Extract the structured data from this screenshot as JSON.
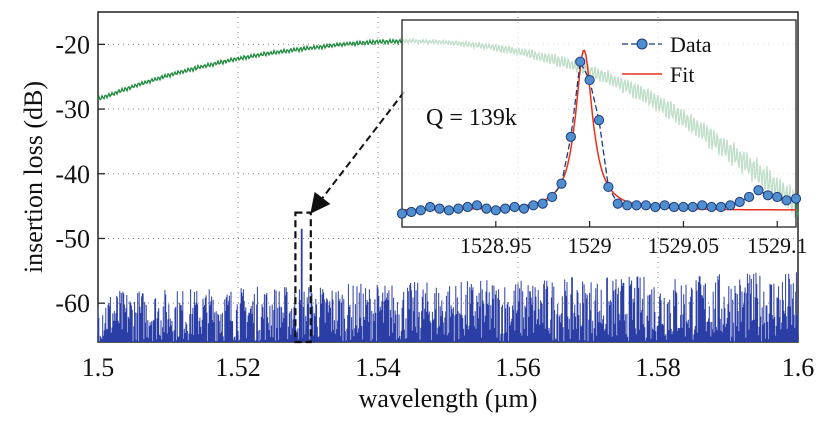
{
  "chart_data": [
    {
      "type": "line",
      "title": "",
      "xlabel": "wavelength (µm)",
      "ylabel": "insertion loss (dB)",
      "xlim": [
        1.5,
        1.6
      ],
      "ylim": [
        -66,
        -15
      ],
      "xticks": [
        1.5,
        1.52,
        1.54,
        1.56,
        1.58,
        1.6
      ],
      "xtick_labels": [
        "1.5",
        "1.52",
        "1.54",
        "1.56",
        "1.58",
        "1.6"
      ],
      "yticks": [
        -60,
        -50,
        -40,
        -30,
        -20
      ],
      "ytick_labels": [
        "-60",
        "-50",
        "-40",
        "-30",
        "-20"
      ],
      "grid": true,
      "series": [
        {
          "color": "#1a8a3a",
          "x": [
            1.5,
            1.505,
            1.51,
            1.515,
            1.52,
            1.525,
            1.53,
            1.535,
            1.54,
            1.545,
            1.55,
            1.555,
            1.56,
            1.565,
            1.57,
            1.575,
            1.58,
            1.585,
            1.59,
            1.595,
            1.6
          ],
          "y": [
            -28.5,
            -26.5,
            -24.8,
            -23.4,
            -22.2,
            -21.3,
            -20.6,
            -20.0,
            -19.6,
            -19.5,
            -19.7,
            -20.2,
            -21.1,
            -22.3,
            -24.0,
            -26.2,
            -29.0,
            -32.4,
            -36.3,
            -40.5,
            -45.0
          ]
        },
        {
          "color": "#2b3ea6",
          "x": [
            1.5,
            1.6
          ],
          "y": [
            -66.0,
            -66.0
          ],
          "noise_upper_envelope": [
            -58,
            -55
          ],
          "peak": {
            "x": 1.5291,
            "y": -48.5
          }
        }
      ],
      "zoom_box": {
        "x": [
          1.5282,
          1.5304
        ],
        "y": [
          -66,
          -46
        ]
      }
    },
    {
      "type": "scatter",
      "title": "",
      "xticks": [
        1528.95,
        1529,
        1529.05,
        1529.1
      ],
      "xtick_labels": [
        "1528.95",
        "1529",
        "1529.05",
        "1529.1"
      ],
      "xlim": [
        1528.9,
        1529.11
      ],
      "legend_position": "top-right",
      "annotation": "Q = 139k",
      "series": [
        {
          "name": "Data",
          "color": "#4f8fcf",
          "x": [
            1528.9,
            1528.905,
            1528.91,
            1528.915,
            1528.92,
            1528.925,
            1528.93,
            1528.935,
            1528.94,
            1528.945,
            1528.95,
            1528.955,
            1528.96,
            1528.965,
            1528.97,
            1528.975,
            1528.98,
            1528.985,
            1528.99,
            1528.995,
            1529.0,
            1529.005,
            1529.01,
            1529.015,
            1529.02,
            1529.025,
            1529.03,
            1529.035,
            1529.04,
            1529.045,
            1529.05,
            1529.055,
            1529.06,
            1529.065,
            1529.07,
            1529.075,
            1529.08,
            1529.085,
            1529.09,
            1529.095,
            1529.1,
            1529.105,
            1529.11
          ],
          "y": [
            0.02,
            0.03,
            0.04,
            0.06,
            0.05,
            0.04,
            0.05,
            0.06,
            0.07,
            0.05,
            0.04,
            0.05,
            0.06,
            0.05,
            0.07,
            0.08,
            0.12,
            0.2,
            0.48,
            0.93,
            0.82,
            0.58,
            0.18,
            0.08,
            0.07,
            0.07,
            0.07,
            0.06,
            0.07,
            0.06,
            0.06,
            0.06,
            0.07,
            0.06,
            0.06,
            0.07,
            0.09,
            0.12,
            0.16,
            0.13,
            0.12,
            0.1,
            0.11
          ]
        },
        {
          "name": "Fit",
          "color": "#e8301c",
          "center": 1528.997,
          "fwhm": 0.011,
          "amplitude": 1.0,
          "baseline": 0.04
        }
      ]
    }
  ]
}
